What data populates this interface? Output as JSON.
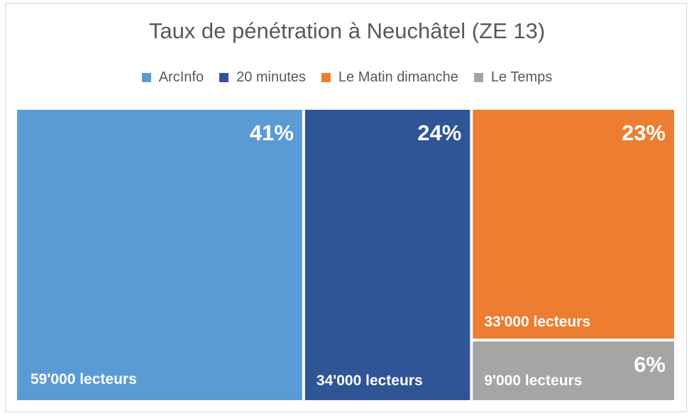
{
  "chart_data": {
    "type": "treemap",
    "title": "Taux de pénétration à Neuchâtel (ZE 13)",
    "legend_position": "top",
    "series": [
      {
        "name": "ArcInfo",
        "value": 41,
        "value_label": "41%",
        "readers_label": "59'000 lecteurs",
        "color": "#5b9bd5"
      },
      {
        "name": "20 minutes",
        "value": 24,
        "value_label": "24%",
        "readers_label": "34'000 lecteurs",
        "color": "#2f5597"
      },
      {
        "name": "Le Matin dimanche",
        "value": 23,
        "value_label": "23%",
        "readers_label": "33'000 lecteurs",
        "color": "#ed7d31"
      },
      {
        "name": "Le Temps",
        "value": 6,
        "value_label": "6%",
        "readers_label": "9'000 lecteurs",
        "color": "#a5a5a5"
      }
    ]
  }
}
